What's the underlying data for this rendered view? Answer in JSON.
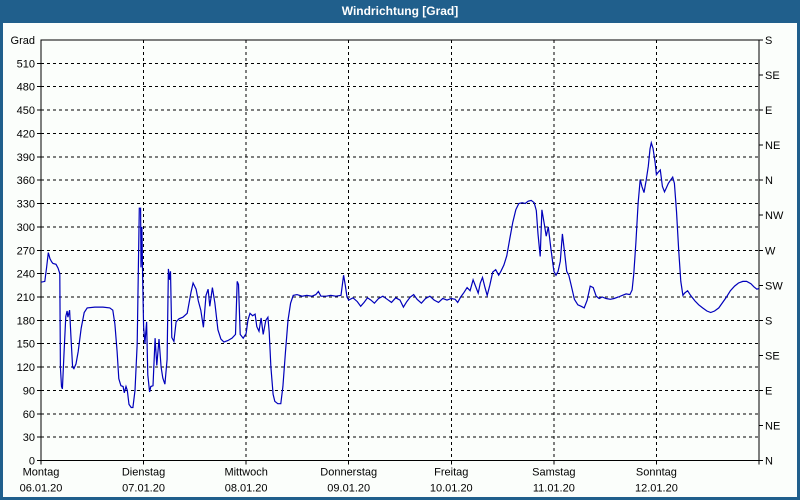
{
  "window": {
    "title": "Windrichtung [Grad]"
  },
  "colors": {
    "frame_and_titlebar": "#205F8C",
    "titlebar_text": "#FFFFFF",
    "client_background": "#FBFEFB",
    "series_line": "#0000BB",
    "axis_and_grid": "#000000"
  },
  "chart_data": {
    "type": "line",
    "title": "Windrichtung [Grad]",
    "grid": "dashed",
    "legend": "none",
    "y_axis": {
      "unit_label": "Grad",
      "min": 0,
      "max": 540,
      "tick_step": 30,
      "ticks": [
        0,
        30,
        60,
        90,
        120,
        150,
        180,
        210,
        240,
        270,
        300,
        330,
        360,
        390,
        420,
        450,
        480,
        510
      ]
    },
    "y2_axis": {
      "description": "compass directions, 45 deg per tick",
      "ticks": [
        {
          "deg": 0,
          "label": "N"
        },
        {
          "deg": 45,
          "label": "NE"
        },
        {
          "deg": 90,
          "label": "E"
        },
        {
          "deg": 135,
          "label": "SE"
        },
        {
          "deg": 180,
          "label": "S"
        },
        {
          "deg": 225,
          "label": "SW"
        },
        {
          "deg": 270,
          "label": "W"
        },
        {
          "deg": 315,
          "label": "NW"
        },
        {
          "deg": 360,
          "label": "N"
        },
        {
          "deg": 405,
          "label": "NE"
        },
        {
          "deg": 450,
          "label": "E"
        },
        {
          "deg": 495,
          "label": "SE"
        },
        {
          "deg": 540,
          "label": "S"
        }
      ]
    },
    "x_axis": {
      "unit": "hours from Monday 00:00",
      "min": 0,
      "max": 168,
      "day_tick_step": 24,
      "days": [
        {
          "name": "Montag",
          "date": "06.01.20"
        },
        {
          "name": "Dienstag",
          "date": "07.01.20"
        },
        {
          "name": "Mittwoch",
          "date": "08.01.20"
        },
        {
          "name": "Donnerstag",
          "date": "09.01.20"
        },
        {
          "name": "Freitag",
          "date": "10.01.20"
        },
        {
          "name": "Samstag",
          "date": "11.01.20"
        },
        {
          "name": "Sonntag",
          "date": "12.01.20"
        }
      ]
    },
    "series": [
      {
        "name": "Windrichtung",
        "points": [
          [
            0,
            229
          ],
          [
            0.9,
            230
          ],
          [
            1.3,
            248
          ],
          [
            1.7,
            267
          ],
          [
            2.1,
            259
          ],
          [
            2.5,
            255
          ],
          [
            2.8,
            253
          ],
          [
            3.5,
            252
          ],
          [
            4,
            247
          ],
          [
            4.4,
            240
          ],
          [
            4.55,
            120
          ],
          [
            4.8,
            95
          ],
          [
            5,
            92
          ],
          [
            5.4,
            140
          ],
          [
            5.8,
            185
          ],
          [
            6.1,
            192
          ],
          [
            6.3,
            184
          ],
          [
            6.7,
            193
          ],
          [
            7,
            160
          ],
          [
            7.4,
            120
          ],
          [
            7.7,
            118
          ],
          [
            8.2,
            124
          ],
          [
            8.7,
            140
          ],
          [
            9.4,
            170
          ],
          [
            10.1,
            190
          ],
          [
            10.8,
            196
          ],
          [
            12.6,
            197
          ],
          [
            14.5,
            197
          ],
          [
            16.1,
            196
          ],
          [
            16.8,
            193
          ],
          [
            17.3,
            175
          ],
          [
            17.8,
            140
          ],
          [
            18.2,
            105
          ],
          [
            18.7,
            96
          ],
          [
            19.2,
            95
          ],
          [
            19.5,
            87
          ],
          [
            19.9,
            95
          ],
          [
            20.2,
            90
          ],
          [
            20.6,
            72
          ],
          [
            21.1,
            68
          ],
          [
            21.5,
            68
          ],
          [
            22,
            90
          ],
          [
            22.5,
            150
          ],
          [
            22.8,
            250
          ],
          [
            23,
            324
          ],
          [
            23.3,
            324
          ],
          [
            23.4,
            248
          ],
          [
            23.6,
            300
          ],
          [
            23.8,
            230
          ],
          [
            24,
            172
          ],
          [
            24.3,
            150
          ],
          [
            24.7,
            178
          ],
          [
            25,
            110
          ],
          [
            25.4,
            88
          ],
          [
            25.7,
            95
          ],
          [
            26.2,
            96
          ],
          [
            26.7,
            157
          ],
          [
            27.1,
            122
          ],
          [
            27.6,
            156
          ],
          [
            28.1,
            120
          ],
          [
            28.5,
            106
          ],
          [
            29,
            98
          ],
          [
            29.5,
            130
          ],
          [
            29.8,
            246
          ],
          [
            30.1,
            232
          ],
          [
            30.3,
            243
          ],
          [
            30.6,
            158
          ],
          [
            31.1,
            153
          ],
          [
            31.6,
            178
          ],
          [
            32.3,
            182
          ],
          [
            33.2,
            184
          ],
          [
            34.2,
            189
          ],
          [
            35.1,
            216
          ],
          [
            35.6,
            228
          ],
          [
            36.3,
            220
          ],
          [
            36.8,
            205
          ],
          [
            37.4,
            193
          ],
          [
            38,
            171
          ],
          [
            38.6,
            212
          ],
          [
            39.1,
            220
          ],
          [
            39.5,
            198
          ],
          [
            40.1,
            222
          ],
          [
            40.7,
            202
          ],
          [
            41.4,
            168
          ],
          [
            42.1,
            156
          ],
          [
            42.8,
            152
          ],
          [
            43.7,
            154
          ],
          [
            44.7,
            157
          ],
          [
            45.5,
            162
          ],
          [
            45.9,
            230
          ],
          [
            46.2,
            226
          ],
          [
            46.6,
            162
          ],
          [
            47.3,
            157
          ],
          [
            48,
            163
          ],
          [
            48.4,
            180
          ],
          [
            48.9,
            189
          ],
          [
            49.5,
            186
          ],
          [
            50.1,
            188
          ],
          [
            50.5,
            172
          ],
          [
            51,
            166
          ],
          [
            51.5,
            183
          ],
          [
            52,
            162
          ],
          [
            52.6,
            180
          ],
          [
            53.1,
            184
          ],
          [
            53.4,
            165
          ],
          [
            53.8,
            120
          ],
          [
            54.3,
            85
          ],
          [
            54.7,
            76
          ],
          [
            55.4,
            73
          ],
          [
            56.1,
            73
          ],
          [
            56.6,
            95
          ],
          [
            57.2,
            140
          ],
          [
            57.8,
            180
          ],
          [
            58.4,
            202
          ],
          [
            59,
            212
          ],
          [
            59.9,
            213
          ],
          [
            61.1,
            211
          ],
          [
            62.2,
            212
          ],
          [
            63.4,
            211
          ],
          [
            64.3,
            213
          ],
          [
            64.9,
            217
          ],
          [
            65.5,
            211
          ],
          [
            66.7,
            211
          ],
          [
            67.8,
            212
          ],
          [
            69,
            211
          ],
          [
            70.2,
            212
          ],
          [
            70.8,
            238
          ],
          [
            71.2,
            225
          ],
          [
            71.6,
            210
          ],
          [
            72,
            206
          ],
          [
            73,
            209
          ],
          [
            74,
            204
          ],
          [
            74.8,
            198
          ],
          [
            75.6,
            203
          ],
          [
            76.4,
            209
          ],
          [
            77.2,
            206
          ],
          [
            78,
            202
          ],
          [
            79,
            208
          ],
          [
            80,
            211
          ],
          [
            81,
            207
          ],
          [
            82,
            203
          ],
          [
            83,
            209
          ],
          [
            84,
            206
          ],
          [
            84.8,
            197
          ],
          [
            85.6,
            204
          ],
          [
            86.4,
            210
          ],
          [
            87.2,
            213
          ],
          [
            88,
            207
          ],
          [
            89,
            202
          ],
          [
            90,
            208
          ],
          [
            91,
            211
          ],
          [
            92,
            206
          ],
          [
            93,
            203
          ],
          [
            94,
            208
          ],
          [
            95,
            206
          ],
          [
            96,
            208
          ],
          [
            96.9,
            207
          ],
          [
            97.5,
            203
          ],
          [
            98.2,
            210
          ],
          [
            99,
            216
          ],
          [
            99.7,
            222
          ],
          [
            100.4,
            218
          ],
          [
            101.1,
            232
          ],
          [
            101.8,
            222
          ],
          [
            102.3,
            215
          ],
          [
            102.8,
            228
          ],
          [
            103.3,
            235
          ],
          [
            103.9,
            222
          ],
          [
            104.4,
            212
          ],
          [
            105,
            225
          ],
          [
            105.7,
            242
          ],
          [
            106.4,
            245
          ],
          [
            107.1,
            238
          ],
          [
            107.6,
            243
          ],
          [
            108.3,
            251
          ],
          [
            109,
            263
          ],
          [
            109.7,
            285
          ],
          [
            110.4,
            306
          ],
          [
            111.1,
            322
          ],
          [
            111.8,
            330
          ],
          [
            112.6,
            331
          ],
          [
            113.3,
            330
          ],
          [
            114,
            333
          ],
          [
            114.7,
            334
          ],
          [
            115.4,
            331
          ],
          [
            115.9,
            321
          ],
          [
            116.3,
            291
          ],
          [
            116.8,
            262
          ],
          [
            117.2,
            322
          ],
          [
            117.8,
            302
          ],
          [
            118.2,
            288
          ],
          [
            118.7,
            300
          ],
          [
            119.3,
            272
          ],
          [
            120,
            243
          ],
          [
            120.5,
            238
          ],
          [
            121,
            243
          ],
          [
            121.5,
            256
          ],
          [
            122,
            291
          ],
          [
            122.5,
            268
          ],
          [
            123,
            243
          ],
          [
            123.5,
            238
          ],
          [
            124,
            226
          ],
          [
            124.8,
            207
          ],
          [
            125.6,
            200
          ],
          [
            126.4,
            198
          ],
          [
            127.1,
            196
          ],
          [
            127.8,
            206
          ],
          [
            128.5,
            224
          ],
          [
            129.2,
            222
          ],
          [
            129.9,
            211
          ],
          [
            130.6,
            208
          ],
          [
            131.3,
            210
          ],
          [
            132.2,
            208
          ],
          [
            133.2,
            207
          ],
          [
            134.1,
            208
          ],
          [
            135.1,
            210
          ],
          [
            136,
            212
          ],
          [
            136.9,
            214
          ],
          [
            137.8,
            213
          ],
          [
            138.3,
            219
          ],
          [
            138.7,
            240
          ],
          [
            139.2,
            280
          ],
          [
            139.7,
            330
          ],
          [
            140.2,
            361
          ],
          [
            140.6,
            352
          ],
          [
            141.1,
            344
          ],
          [
            141.6,
            360
          ],
          [
            142.1,
            378
          ],
          [
            142.5,
            400
          ],
          [
            142.8,
            408
          ],
          [
            143.2,
            401
          ],
          [
            143.7,
            383
          ],
          [
            144,
            367
          ],
          [
            144.4,
            370
          ],
          [
            144.9,
            373
          ],
          [
            145.4,
            352
          ],
          [
            145.9,
            345
          ],
          [
            146.3,
            350
          ],
          [
            146.8,
            356
          ],
          [
            147.3,
            360
          ],
          [
            147.8,
            364
          ],
          [
            148.2,
            356
          ],
          [
            148.7,
            320
          ],
          [
            149.2,
            270
          ],
          [
            149.7,
            230
          ],
          [
            150.2,
            212
          ],
          [
            150.6,
            215
          ],
          [
            151.3,
            218
          ],
          [
            152,
            212
          ],
          [
            153,
            205
          ],
          [
            153.9,
            200
          ],
          [
            154.8,
            196
          ],
          [
            155.8,
            192
          ],
          [
            156.7,
            190
          ],
          [
            157.6,
            192
          ],
          [
            158.6,
            196
          ],
          [
            159.5,
            203
          ],
          [
            160.4,
            210
          ],
          [
            161.3,
            218
          ],
          [
            162.3,
            224
          ],
          [
            163.2,
            228
          ],
          [
            164.2,
            230
          ],
          [
            165.1,
            230
          ],
          [
            166.1,
            227
          ],
          [
            166.8,
            223
          ],
          [
            167.5,
            220
          ],
          [
            168,
            221
          ]
        ]
      }
    ]
  }
}
